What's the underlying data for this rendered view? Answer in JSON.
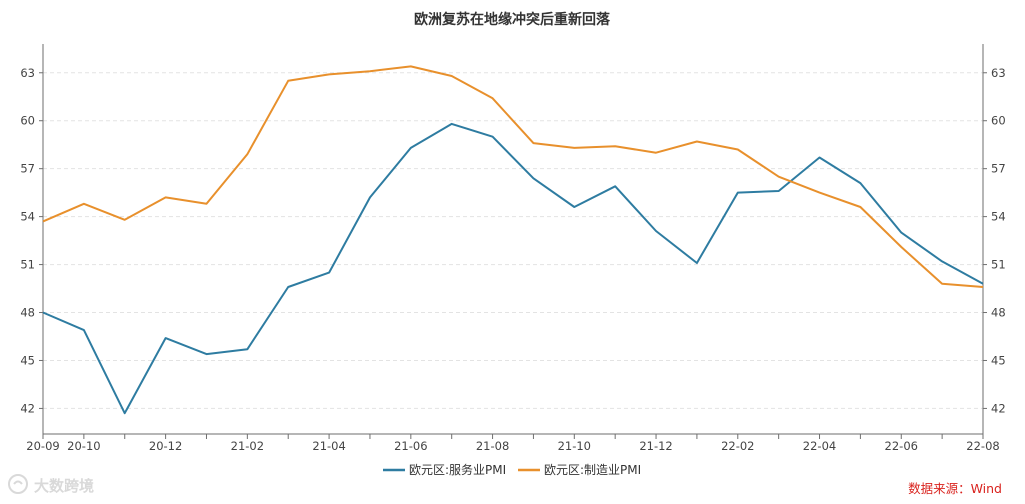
{
  "chart_data": {
    "type": "line",
    "title": "欧洲复苏在地缘冲突后重新回落",
    "xlabel": "",
    "ylabel": "",
    "x": [
      "20-09",
      "20-10",
      "20-11",
      "20-12",
      "21-01",
      "21-02",
      "21-03",
      "21-04",
      "21-05",
      "21-06",
      "21-07",
      "21-08",
      "21-09",
      "21-10",
      "21-11",
      "21-12",
      "22-01",
      "22-02",
      "22-03",
      "22-04",
      "22-05",
      "22-06",
      "22-07",
      "22-08"
    ],
    "x_tick_labels": [
      "20-09",
      "20-10",
      "20-12",
      "21-02",
      "21-04",
      "21-06",
      "21-08",
      "21-10",
      "21-12",
      "22-02",
      "22-04",
      "22-06",
      "22-08"
    ],
    "ylim": [
      40.4,
      64.8
    ],
    "y_ticks": [
      42,
      45,
      48,
      51,
      54,
      57,
      60,
      63
    ],
    "grid": true,
    "legend_position": "bottom-center",
    "series": [
      {
        "name": "欧元区:服务业PMI",
        "color": "#2e7ca1",
        "values": [
          48.0,
          46.9,
          41.7,
          46.4,
          45.4,
          45.7,
          49.6,
          50.5,
          55.2,
          58.3,
          59.8,
          59.0,
          56.4,
          54.6,
          55.9,
          53.1,
          51.1,
          55.5,
          55.6,
          57.7,
          56.1,
          53.0,
          51.2,
          49.8
        ]
      },
      {
        "name": "欧元区:制造业PMI",
        "color": "#e8902c",
        "values": [
          53.7,
          54.8,
          53.8,
          55.2,
          54.8,
          57.9,
          62.5,
          62.9,
          63.1,
          63.4,
          62.8,
          61.4,
          58.6,
          58.3,
          58.4,
          58.0,
          58.7,
          58.2,
          56.5,
          55.5,
          54.6,
          52.1,
          49.8,
          49.6
        ]
      }
    ]
  },
  "source_note": "数据来源：Wind",
  "watermark": "大数跨境"
}
